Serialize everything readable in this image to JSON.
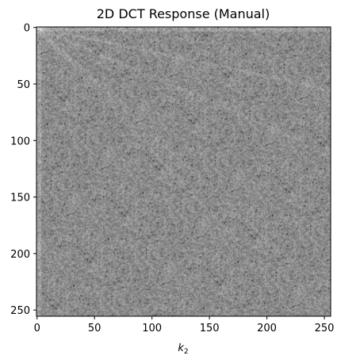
{
  "chart_data": {
    "type": "heatmap",
    "title": "2D DCT Response (Manual)",
    "xlabel": "k",
    "xlabel_subscript": "2",
    "ylabel": "",
    "colormap": "gray",
    "shape": [
      256,
      256
    ],
    "xlim": [
      0,
      255
    ],
    "ylim": [
      255,
      0
    ],
    "x_ticks": [
      0,
      50,
      100,
      150,
      200,
      250
    ],
    "y_ticks": [
      0,
      50,
      100,
      150,
      200,
      250
    ],
    "x_tick_labels": [
      "0",
      "50",
      "100",
      "150",
      "200",
      "250"
    ],
    "y_tick_labels": [
      "0",
      "50",
      "100",
      "150",
      "200",
      "250"
    ],
    "background_gray_level": 0.55,
    "noise_amplitude": 0.12,
    "streaks": [
      {
        "from": [
          0,
          0
        ],
        "to": [
          255,
          55
        ],
        "intensity": 0.08
      },
      {
        "from": [
          0,
          0
        ],
        "to": [
          230,
          100
        ],
        "intensity": 0.07
      },
      {
        "from": [
          0,
          0
        ],
        "to": [
          175,
          190
        ],
        "intensity": 0.06
      },
      {
        "from": [
          0,
          0
        ],
        "to": [
          255,
          240
        ],
        "intensity": 0.05
      }
    ],
    "grid": false
  }
}
